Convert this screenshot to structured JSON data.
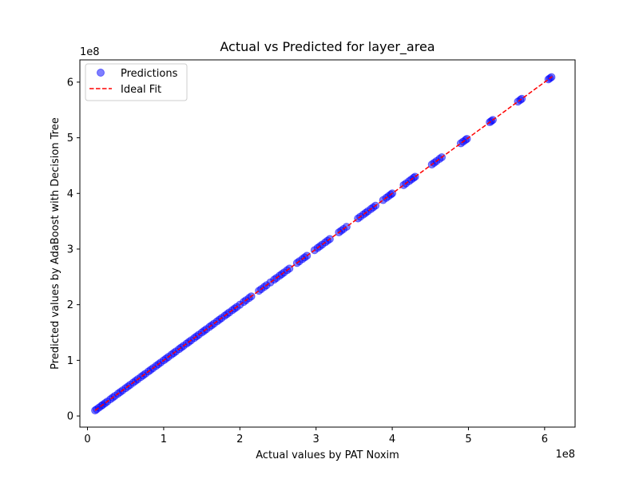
{
  "chart_data": {
    "type": "scatter",
    "title": "Actual vs Predicted for layer_area",
    "xlabel": "Actual values by PAT Noxim",
    "ylabel": "Predicted values by AdaBoost with Decision Tree",
    "x_multiplier_label": "1e8",
    "y_multiplier_label": "1e8",
    "xlim": [
      -0.1,
      6.4
    ],
    "ylim": [
      -0.2,
      6.4
    ],
    "xticks": [
      0,
      1,
      2,
      3,
      4,
      5,
      6
    ],
    "yticks": [
      0,
      1,
      2,
      3,
      4,
      5,
      6
    ],
    "xtick_labels": [
      "0",
      "1",
      "2",
      "3",
      "4",
      "5",
      "6"
    ],
    "ytick_labels": [
      "0",
      "1",
      "2",
      "3",
      "4",
      "5",
      "6"
    ],
    "grid": false,
    "legend_position": "upper-left",
    "series": [
      {
        "name": "Predictions",
        "kind": "scatter",
        "color": "#0000ff",
        "alpha": 0.5,
        "points": [
          [
            0.1,
            0.1
          ],
          [
            0.12,
            0.12
          ],
          [
            0.15,
            0.15
          ],
          [
            0.18,
            0.18
          ],
          [
            0.2,
            0.2
          ],
          [
            0.23,
            0.23
          ],
          [
            0.26,
            0.26
          ],
          [
            0.3,
            0.3
          ],
          [
            0.33,
            0.33
          ],
          [
            0.36,
            0.36
          ],
          [
            0.4,
            0.4
          ],
          [
            0.43,
            0.43
          ],
          [
            0.46,
            0.46
          ],
          [
            0.5,
            0.5
          ],
          [
            0.53,
            0.53
          ],
          [
            0.56,
            0.56
          ],
          [
            0.6,
            0.6
          ],
          [
            0.63,
            0.63
          ],
          [
            0.66,
            0.66
          ],
          [
            0.7,
            0.7
          ],
          [
            0.73,
            0.73
          ],
          [
            0.76,
            0.76
          ],
          [
            0.8,
            0.8
          ],
          [
            0.83,
            0.83
          ],
          [
            0.86,
            0.86
          ],
          [
            0.9,
            0.9
          ],
          [
            0.93,
            0.93
          ],
          [
            0.96,
            0.96
          ],
          [
            1.0,
            1.0
          ],
          [
            1.03,
            1.03
          ],
          [
            1.06,
            1.06
          ],
          [
            1.1,
            1.1
          ],
          [
            1.13,
            1.13
          ],
          [
            1.16,
            1.16
          ],
          [
            1.2,
            1.2
          ],
          [
            1.23,
            1.23
          ],
          [
            1.26,
            1.26
          ],
          [
            1.3,
            1.3
          ],
          [
            1.33,
            1.33
          ],
          [
            1.36,
            1.36
          ],
          [
            1.4,
            1.4
          ],
          [
            1.43,
            1.43
          ],
          [
            1.46,
            1.46
          ],
          [
            1.5,
            1.5
          ],
          [
            1.53,
            1.53
          ],
          [
            1.56,
            1.56
          ],
          [
            1.6,
            1.6
          ],
          [
            1.63,
            1.63
          ],
          [
            1.66,
            1.66
          ],
          [
            1.7,
            1.7
          ],
          [
            1.73,
            1.73
          ],
          [
            1.76,
            1.76
          ],
          [
            1.8,
            1.8
          ],
          [
            1.83,
            1.83
          ],
          [
            1.86,
            1.86
          ],
          [
            1.9,
            1.9
          ],
          [
            1.93,
            1.93
          ],
          [
            1.96,
            1.96
          ],
          [
            2.0,
            2.0
          ],
          [
            2.05,
            2.05
          ],
          [
            2.08,
            2.08
          ],
          [
            2.12,
            2.12
          ],
          [
            2.15,
            2.15
          ],
          [
            2.25,
            2.25
          ],
          [
            2.28,
            2.28
          ],
          [
            2.32,
            2.32
          ],
          [
            2.35,
            2.35
          ],
          [
            2.4,
            2.4
          ],
          [
            2.45,
            2.45
          ],
          [
            2.48,
            2.48
          ],
          [
            2.52,
            2.52
          ],
          [
            2.55,
            2.55
          ],
          [
            2.58,
            2.58
          ],
          [
            2.62,
            2.62
          ],
          [
            2.65,
            2.65
          ],
          [
            2.75,
            2.75
          ],
          [
            2.78,
            2.78
          ],
          [
            2.82,
            2.82
          ],
          [
            2.85,
            2.85
          ],
          [
            2.88,
            2.88
          ],
          [
            2.98,
            2.98
          ],
          [
            3.02,
            3.02
          ],
          [
            3.05,
            3.05
          ],
          [
            3.08,
            3.08
          ],
          [
            3.12,
            3.12
          ],
          [
            3.15,
            3.15
          ],
          [
            3.18,
            3.18
          ],
          [
            3.3,
            3.3
          ],
          [
            3.33,
            3.33
          ],
          [
            3.36,
            3.36
          ],
          [
            3.4,
            3.4
          ],
          [
            3.55,
            3.55
          ],
          [
            3.58,
            3.58
          ],
          [
            3.62,
            3.62
          ],
          [
            3.65,
            3.65
          ],
          [
            3.68,
            3.68
          ],
          [
            3.72,
            3.72
          ],
          [
            3.75,
            3.75
          ],
          [
            3.78,
            3.78
          ],
          [
            3.88,
            3.88
          ],
          [
            3.92,
            3.92
          ],
          [
            3.95,
            3.95
          ],
          [
            3.98,
            3.98
          ],
          [
            4.0,
            4.0
          ],
          [
            4.15,
            4.15
          ],
          [
            4.18,
            4.18
          ],
          [
            4.22,
            4.22
          ],
          [
            4.25,
            4.25
          ],
          [
            4.28,
            4.28
          ],
          [
            4.3,
            4.3
          ],
          [
            4.52,
            4.52
          ],
          [
            4.55,
            4.55
          ],
          [
            4.58,
            4.58
          ],
          [
            4.62,
            4.62
          ],
          [
            4.65,
            4.65
          ],
          [
            4.9,
            4.9
          ],
          [
            4.93,
            4.93
          ],
          [
            4.96,
            4.96
          ],
          [
            4.98,
            4.98
          ],
          [
            5.28,
            5.28
          ],
          [
            5.3,
            5.3
          ],
          [
            5.32,
            5.32
          ],
          [
            5.65,
            5.65
          ],
          [
            5.68,
            5.68
          ],
          [
            5.7,
            5.7
          ],
          [
            6.05,
            6.05
          ],
          [
            6.07,
            6.07
          ],
          [
            6.09,
            6.09
          ]
        ]
      },
      {
        "name": "Ideal Fit",
        "kind": "line",
        "style": "dashed",
        "color": "#ff0000",
        "points": [
          [
            0.1,
            0.1
          ],
          [
            6.1,
            6.1
          ]
        ]
      }
    ]
  }
}
